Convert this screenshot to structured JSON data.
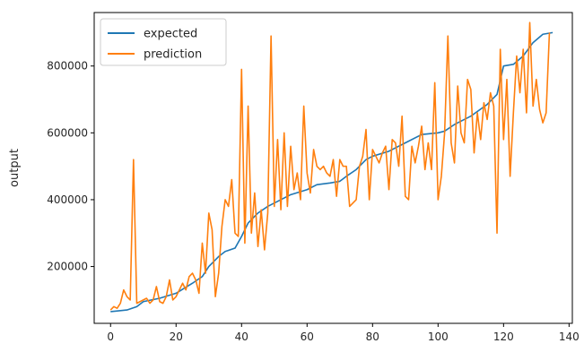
{
  "chart_data": {
    "type": "line",
    "title": "",
    "xlabel": "",
    "ylabel": "output",
    "xlim": [
      -5,
      141
    ],
    "ylim": [
      30000,
      960000
    ],
    "x_ticks": [
      0,
      20,
      40,
      60,
      80,
      100,
      120,
      140
    ],
    "x_tick_labels": [
      "0",
      "20",
      "40",
      "60",
      "80",
      "100",
      "120",
      "140"
    ],
    "y_ticks": [
      200000,
      400000,
      600000,
      800000
    ],
    "y_tick_labels": [
      "200000",
      "400000",
      "600000",
      "800000"
    ],
    "grid": false,
    "legend": "upper left",
    "series": [
      {
        "name": "expected",
        "color": "#1f77b4",
        "points": [
          [
            0,
            65000
          ],
          [
            5,
            70000
          ],
          [
            8,
            80000
          ],
          [
            10,
            95000
          ],
          [
            15,
            105000
          ],
          [
            20,
            120000
          ],
          [
            25,
            150000
          ],
          [
            28,
            170000
          ],
          [
            30,
            200000
          ],
          [
            33,
            230000
          ],
          [
            35,
            245000
          ],
          [
            38,
            255000
          ],
          [
            40,
            290000
          ],
          [
            42,
            330000
          ],
          [
            45,
            360000
          ],
          [
            48,
            380000
          ],
          [
            50,
            390000
          ],
          [
            55,
            415000
          ],
          [
            60,
            430000
          ],
          [
            63,
            445000
          ],
          [
            67,
            450000
          ],
          [
            70,
            455000
          ],
          [
            72,
            470000
          ],
          [
            75,
            490000
          ],
          [
            78,
            520000
          ],
          [
            80,
            530000
          ],
          [
            85,
            545000
          ],
          [
            90,
            570000
          ],
          [
            95,
            595000
          ],
          [
            100,
            600000
          ],
          [
            102,
            605000
          ],
          [
            105,
            625000
          ],
          [
            110,
            650000
          ],
          [
            115,
            685000
          ],
          [
            118,
            715000
          ],
          [
            120,
            800000
          ],
          [
            123,
            805000
          ],
          [
            126,
            830000
          ],
          [
            129,
            870000
          ],
          [
            132,
            895000
          ],
          [
            135,
            900000
          ]
        ]
      },
      {
        "name": "prediction",
        "color": "#ff7f0e",
        "points": [
          [
            0,
            70000
          ],
          [
            1,
            80000
          ],
          [
            2,
            75000
          ],
          [
            3,
            90000
          ],
          [
            4,
            130000
          ],
          [
            5,
            110000
          ],
          [
            6,
            100000
          ],
          [
            7,
            520000
          ],
          [
            8,
            90000
          ],
          [
            9,
            95000
          ],
          [
            10,
            100000
          ],
          [
            11,
            105000
          ],
          [
            12,
            90000
          ],
          [
            13,
            100000
          ],
          [
            14,
            140000
          ],
          [
            15,
            95000
          ],
          [
            16,
            90000
          ],
          [
            17,
            110000
          ],
          [
            18,
            160000
          ],
          [
            19,
            100000
          ],
          [
            20,
            110000
          ],
          [
            21,
            130000
          ],
          [
            22,
            150000
          ],
          [
            23,
            130000
          ],
          [
            24,
            170000
          ],
          [
            25,
            180000
          ],
          [
            26,
            160000
          ],
          [
            27,
            120000
          ],
          [
            28,
            270000
          ],
          [
            29,
            180000
          ],
          [
            30,
            360000
          ],
          [
            31,
            310000
          ],
          [
            32,
            110000
          ],
          [
            33,
            180000
          ],
          [
            34,
            320000
          ],
          [
            35,
            400000
          ],
          [
            36,
            380000
          ],
          [
            37,
            460000
          ],
          [
            38,
            300000
          ],
          [
            39,
            290000
          ],
          [
            40,
            790000
          ],
          [
            41,
            270000
          ],
          [
            42,
            680000
          ],
          [
            43,
            300000
          ],
          [
            44,
            420000
          ],
          [
            45,
            260000
          ],
          [
            46,
            370000
          ],
          [
            47,
            250000
          ],
          [
            48,
            360000
          ],
          [
            49,
            890000
          ],
          [
            50,
            380000
          ],
          [
            51,
            580000
          ],
          [
            52,
            370000
          ],
          [
            53,
            600000
          ],
          [
            54,
            380000
          ],
          [
            55,
            560000
          ],
          [
            56,
            430000
          ],
          [
            57,
            480000
          ],
          [
            58,
            400000
          ],
          [
            59,
            680000
          ],
          [
            60,
            480000
          ],
          [
            61,
            420000
          ],
          [
            62,
            550000
          ],
          [
            63,
            500000
          ],
          [
            64,
            490000
          ],
          [
            65,
            500000
          ],
          [
            66,
            480000
          ],
          [
            67,
            470000
          ],
          [
            68,
            520000
          ],
          [
            69,
            410000
          ],
          [
            70,
            520000
          ],
          [
            71,
            500000
          ],
          [
            72,
            500000
          ],
          [
            73,
            380000
          ],
          [
            74,
            390000
          ],
          [
            75,
            400000
          ],
          [
            76,
            500000
          ],
          [
            77,
            530000
          ],
          [
            78,
            610000
          ],
          [
            79,
            400000
          ],
          [
            80,
            550000
          ],
          [
            81,
            530000
          ],
          [
            82,
            510000
          ],
          [
            83,
            540000
          ],
          [
            84,
            560000
          ],
          [
            85,
            430000
          ],
          [
            86,
            580000
          ],
          [
            87,
            570000
          ],
          [
            88,
            500000
          ],
          [
            89,
            650000
          ],
          [
            90,
            410000
          ],
          [
            91,
            400000
          ],
          [
            92,
            560000
          ],
          [
            93,
            510000
          ],
          [
            94,
            560000
          ],
          [
            95,
            620000
          ],
          [
            96,
            490000
          ],
          [
            97,
            570000
          ],
          [
            98,
            490000
          ],
          [
            99,
            750000
          ],
          [
            100,
            400000
          ],
          [
            101,
            470000
          ],
          [
            102,
            600000
          ],
          [
            103,
            890000
          ],
          [
            104,
            570000
          ],
          [
            105,
            510000
          ],
          [
            106,
            740000
          ],
          [
            107,
            600000
          ],
          [
            108,
            570000
          ],
          [
            109,
            760000
          ],
          [
            110,
            730000
          ],
          [
            111,
            540000
          ],
          [
            112,
            660000
          ],
          [
            113,
            580000
          ],
          [
            114,
            690000
          ],
          [
            115,
            640000
          ],
          [
            116,
            720000
          ],
          [
            117,
            680000
          ],
          [
            118,
            300000
          ],
          [
            119,
            850000
          ],
          [
            120,
            580000
          ],
          [
            121,
            760000
          ],
          [
            122,
            470000
          ],
          [
            123,
            660000
          ],
          [
            124,
            830000
          ],
          [
            125,
            720000
          ],
          [
            126,
            850000
          ],
          [
            127,
            660000
          ],
          [
            128,
            930000
          ],
          [
            129,
            680000
          ],
          [
            130,
            760000
          ],
          [
            131,
            670000
          ],
          [
            132,
            630000
          ],
          [
            133,
            660000
          ],
          [
            134,
            900000
          ]
        ]
      }
    ]
  }
}
